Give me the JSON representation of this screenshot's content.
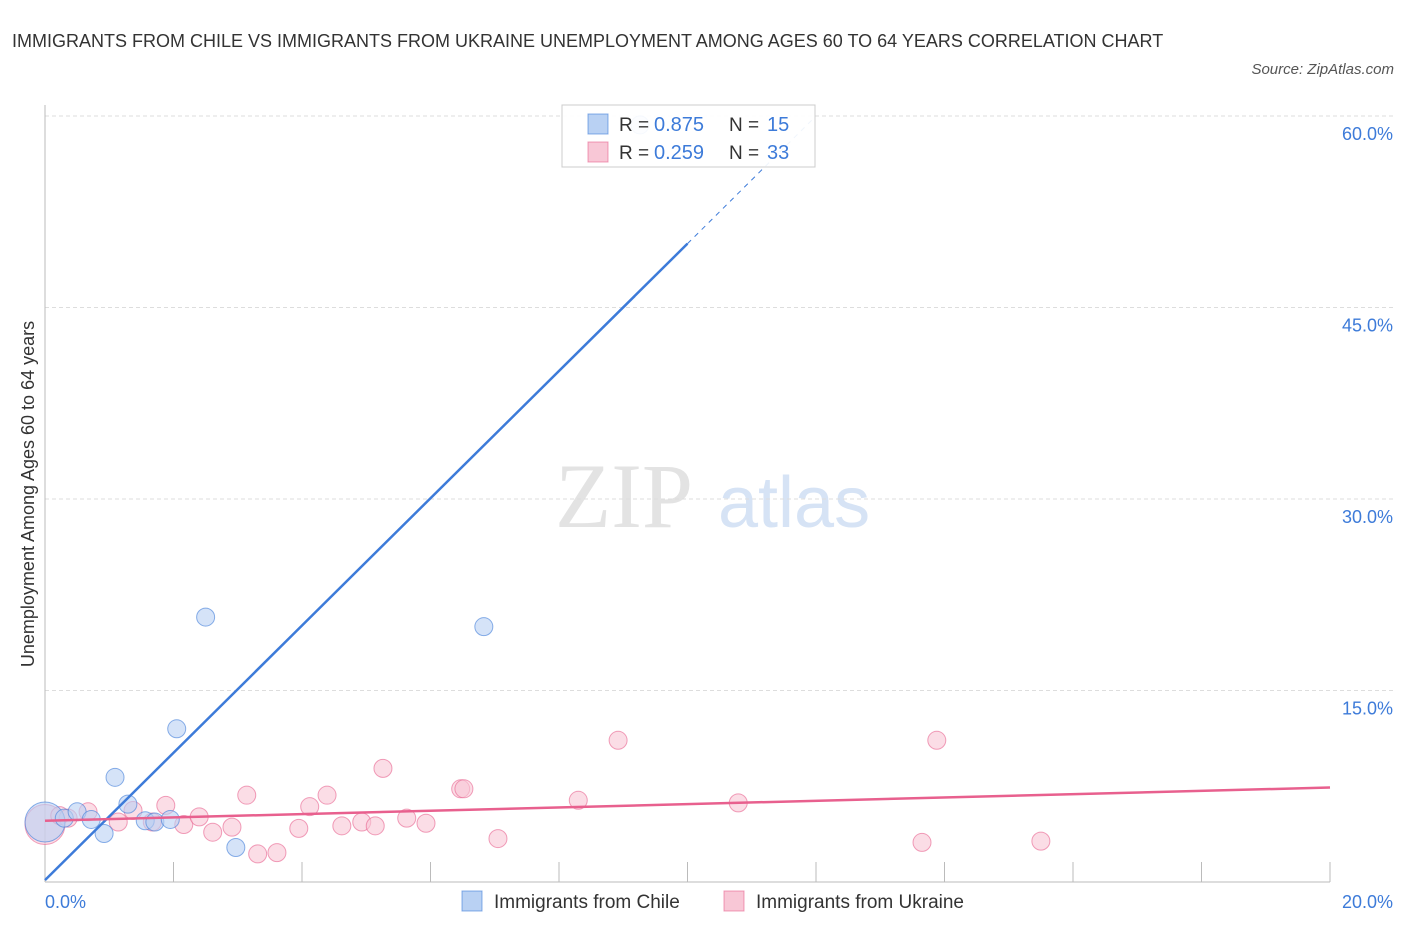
{
  "title": "IMMIGRANTS FROM CHILE VS IMMIGRANTS FROM UKRAINE UNEMPLOYMENT AMONG AGES 60 TO 64 YEARS CORRELATION CHART",
  "source": "Source: ZipAtlas.com",
  "watermark": {
    "zip": "ZIP",
    "atlas": "atlas"
  },
  "chart_data": {
    "type": "scatter",
    "title": "IMMIGRANTS FROM CHILE VS IMMIGRANTS FROM UKRAINE UNEMPLOYMENT AMONG AGES 60 TO 64 YEARS CORRELATION CHART",
    "xlabel": "",
    "ylabel": "Unemployment Among Ages 60 to 64 years",
    "xlim": [
      0,
      20
    ],
    "ylim": [
      0,
      60
    ],
    "x_tick_labels": [
      "0.0%",
      "20.0%"
    ],
    "y_ticks": [
      15,
      30,
      45,
      60
    ],
    "y_tick_labels": [
      "15.0%",
      "30.0%",
      "45.0%",
      "60.0%"
    ],
    "grid": true,
    "legend_placement": "bottom",
    "series": [
      {
        "name": "Immigrants from Chile",
        "color": "#3d7bd9",
        "fill": "#b9d1f3",
        "R": "0.875",
        "N": "15",
        "points": [
          [
            0,
            4.7
          ],
          [
            0.3,
            5.0
          ],
          [
            0.5,
            5.5
          ],
          [
            0.72,
            4.9
          ],
          [
            0.92,
            3.8
          ],
          [
            1.09,
            8.2
          ],
          [
            1.29,
            6.1
          ],
          [
            1.56,
            4.8
          ],
          [
            1.71,
            4.7
          ],
          [
            1.95,
            4.9
          ],
          [
            2.05,
            12.0
          ],
          [
            2.5,
            20.75
          ],
          [
            2.97,
            2.7
          ],
          [
            6.83,
            20.0
          ],
          [
            9.26,
            59.3
          ]
        ],
        "trend": {
          "x0": 0,
          "y0": 0.15,
          "x1": 10,
          "y1": 50,
          "dash_x1": 11.98,
          "dash_y1": 59.9
        }
      },
      {
        "name": "Immigrants from Ukraine",
        "color": "#e8608e",
        "fill": "#f8c7d6",
        "R": "0.259",
        "N": "33",
        "points": [
          [
            0,
            4.5
          ],
          [
            0.23,
            5.2
          ],
          [
            0.36,
            5.0
          ],
          [
            0.67,
            5.5
          ],
          [
            1.14,
            4.7
          ],
          [
            1.37,
            5.6
          ],
          [
            1.67,
            4.7
          ],
          [
            1.88,
            6.0
          ],
          [
            2.16,
            4.5
          ],
          [
            2.4,
            5.1
          ],
          [
            2.61,
            3.9
          ],
          [
            2.91,
            4.3
          ],
          [
            3.14,
            6.8
          ],
          [
            3.31,
            2.2
          ],
          [
            3.61,
            2.3
          ],
          [
            3.95,
            4.2
          ],
          [
            4.12,
            5.9
          ],
          [
            4.39,
            6.8
          ],
          [
            4.62,
            4.4
          ],
          [
            4.93,
            4.7
          ],
          [
            5.14,
            4.4
          ],
          [
            5.26,
            8.9
          ],
          [
            5.63,
            5.0
          ],
          [
            5.93,
            4.6
          ],
          [
            6.47,
            7.3
          ],
          [
            6.52,
            7.3
          ],
          [
            7.05,
            3.4
          ],
          [
            8.3,
            6.4
          ],
          [
            8.92,
            11.1
          ],
          [
            10.79,
            6.2
          ],
          [
            13.65,
            3.1
          ],
          [
            13.88,
            11.1
          ],
          [
            15.5,
            3.2
          ]
        ],
        "trend": {
          "x0": 0,
          "y0": 4.8,
          "x1": 20,
          "y1": 7.4
        }
      }
    ]
  },
  "legend": {
    "r_label": "R =",
    "n_label": "N ="
  }
}
